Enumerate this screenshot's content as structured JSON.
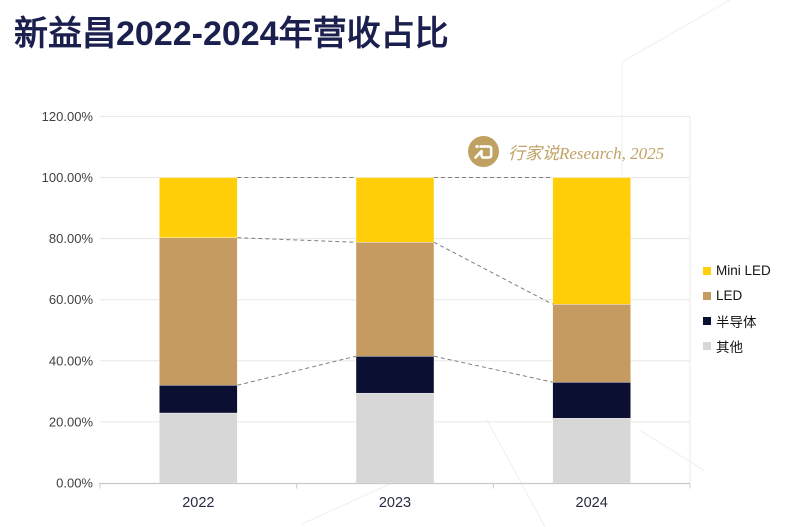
{
  "page": {
    "title": "新益昌2022-2024年营收占比"
  },
  "watermark": {
    "logo_icon": "hangjiashuo-logo",
    "text": "行家说Research, 2025"
  },
  "chart_data": {
    "type": "bar",
    "stacked": true,
    "title": "新益昌2022-2024年营收占比",
    "categories": [
      "2022",
      "2023",
      "2024"
    ],
    "series": [
      {
        "name": "其他",
        "color": "#D7D7D7",
        "values": [
          22.9,
          29.4,
          21.2
        ]
      },
      {
        "name": "半导体",
        "color": "#0B1033",
        "values": [
          9.1,
          12.1,
          11.8
        ]
      },
      {
        "name": "LED",
        "color": "#C69B62",
        "values": [
          48.3,
          37.3,
          25.5
        ]
      },
      {
        "name": "Mini LED",
        "color": "#FFCE08",
        "values": [
          19.7,
          21.2,
          41.5
        ]
      }
    ],
    "unit": "%",
    "xlabel": "",
    "ylabel": "",
    "ylim": [
      0,
      120
    ],
    "ytick_values": [
      0,
      20,
      40,
      60,
      80,
      100,
      120
    ],
    "yticks": [
      "0.00%",
      "20.00%",
      "40.00%",
      "60.00%",
      "80.00%",
      "100.00%",
      "120.00%"
    ],
    "grid": true,
    "legend_position": "right",
    "annotations": {
      "connectors": "dashed gray lines join boundaries of 半导体-top, LED-top and 100% levels between adjacent bars"
    }
  },
  "legend": {
    "items": [
      {
        "label": "Mini LED",
        "color": "#FFCE08"
      },
      {
        "label": "LED",
        "color": "#C69B62"
      },
      {
        "label": "半导体",
        "color": "#0B1033"
      },
      {
        "label": "其他",
        "color": "#D7D7D7"
      }
    ]
  },
  "colors": {
    "title": "#1B1F4E",
    "axis_label": "#404040",
    "x_label": "#262B42",
    "gridline": "#E7E7E7",
    "axis_line": "#C9C9C9",
    "connector": "#7F7F7F",
    "watermark_gold": "#C0A264",
    "decor_line": "#F1F1F1"
  }
}
